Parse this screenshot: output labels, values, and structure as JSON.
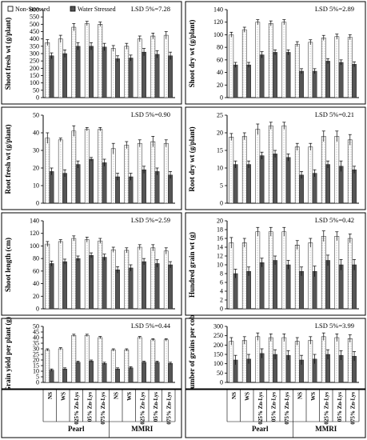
{
  "legend": {
    "non_stressed": "Non-Stressed",
    "water_stressed": "Water Stressed"
  },
  "colors": {
    "non_stressed_fill": "#ffffff",
    "water_stressed_fill": "#555555",
    "axis": "#000000",
    "grid": "#bbbbbb"
  },
  "categories": [
    "NS",
    "WS",
    "025% Zn-Lys",
    "05% Zn-Lys",
    "075% Zn-Lys",
    "NS",
    "WS",
    "025% Zn-Lys",
    "05% Zn-Lys",
    "075% Zn-Lys"
  ],
  "groups": [
    {
      "label": "Pearl"
    },
    {
      "label": "MMRI"
    }
  ],
  "chart_data": [
    {
      "type": "bar",
      "ylabel": "Shoot fresh wt (g/plant)",
      "lsd": "LSD 5%=7.28",
      "ylim": [
        0,
        600
      ],
      "yticks": [
        0,
        50,
        100,
        150,
        200,
        250,
        300,
        350,
        400,
        450,
        500,
        550,
        600
      ],
      "series": [
        {
          "name": "Non-Stressed",
          "values": [
            375,
            400,
            480,
            505,
            500,
            335,
            350,
            400,
            420,
            425
          ],
          "errors": [
            20,
            25,
            25,
            15,
            15,
            20,
            20,
            20,
            20,
            25
          ]
        },
        {
          "name": "Water Stressed",
          "values": [
            285,
            300,
            350,
            350,
            345,
            265,
            270,
            310,
            295,
            285
          ],
          "errors": [
            20,
            25,
            25,
            25,
            25,
            20,
            20,
            25,
            25,
            25
          ]
        }
      ]
    },
    {
      "type": "bar",
      "ylabel": "Shoot dry wt (g/plant)",
      "lsd": "LSD 5%=2.89",
      "ylim": [
        0,
        140
      ],
      "yticks": [
        0,
        20,
        40,
        60,
        80,
        100,
        120,
        140
      ],
      "series": [
        {
          "name": "Non-Stressed",
          "values": [
            100,
            108,
            120,
            118,
            120,
            85,
            88,
            95,
            97,
            96
          ],
          "errors": [
            4,
            4,
            4,
            4,
            4,
            4,
            4,
            4,
            4,
            4
          ]
        },
        {
          "name": "Water Stressed",
          "values": [
            52,
            52,
            68,
            72,
            72,
            42,
            42,
            58,
            56,
            53
          ],
          "errors": [
            4,
            4,
            5,
            4,
            4,
            4,
            4,
            4,
            4,
            4
          ]
        }
      ]
    },
    {
      "type": "bar",
      "ylabel": "Root fresh wt (g/plant)",
      "lsd": "LSD 5%=0.90",
      "ylim": [
        0,
        50
      ],
      "yticks": [
        0,
        10,
        20,
        30,
        40,
        50
      ],
      "series": [
        {
          "name": "Non-Stressed",
          "values": [
            37,
            36,
            41,
            42,
            42,
            31,
            33,
            34,
            35,
            34
          ],
          "errors": [
            3,
            1,
            3,
            1,
            1,
            3,
            2,
            2,
            3,
            2
          ]
        },
        {
          "name": "Water Stressed",
          "values": [
            18,
            17,
            22,
            25,
            23,
            15,
            15,
            19,
            18,
            16
          ],
          "errors": [
            2,
            2,
            2,
            1,
            2,
            2,
            2,
            2,
            2,
            2
          ]
        }
      ]
    },
    {
      "type": "bar",
      "ylabel": "Root dry wt (g/plant)",
      "lsd": "LSD 5%=0.21",
      "ylim": [
        0,
        25
      ],
      "yticks": [
        0,
        5,
        10,
        15,
        20,
        25
      ],
      "series": [
        {
          "name": "Non-Stressed",
          "values": [
            18.8,
            19,
            21,
            22,
            22,
            16,
            16,
            19,
            19,
            18
          ],
          "errors": [
            1,
            1,
            1.5,
            1,
            1,
            1,
            1,
            1.5,
            1.5,
            1.5
          ]
        },
        {
          "name": "Water Stressed",
          "values": [
            11,
            11,
            13.5,
            14,
            13,
            8,
            8.5,
            11,
            10.5,
            9.5
          ],
          "errors": [
            1,
            1,
            1,
            1,
            1,
            1,
            1,
            1,
            1.5,
            1
          ]
        }
      ]
    },
    {
      "type": "bar",
      "ylabel": "Shoot length (cm)",
      "lsd": "LSD 5%=2.59",
      "ylim": [
        0,
        140
      ],
      "yticks": [
        0,
        20,
        40,
        60,
        80,
        100,
        120,
        140
      ],
      "series": [
        {
          "name": "Non-Stressed",
          "values": [
            103,
            107,
            112,
            110,
            108,
            94,
            93,
            98,
            97,
            92
          ],
          "errors": [
            4,
            3,
            4,
            4,
            4,
            4,
            4,
            4,
            5,
            5
          ]
        },
        {
          "name": "Water Stressed",
          "values": [
            72,
            75,
            80,
            85,
            82,
            62,
            65,
            75,
            72,
            70
          ],
          "errors": [
            4,
            4,
            4,
            4,
            5,
            5,
            5,
            5,
            6,
            5
          ]
        }
      ]
    },
    {
      "type": "bar",
      "ylabel": "Hundred grain wt (g)",
      "lsd": "LSD 5%=0.42",
      "ylim": [
        0,
        20
      ],
      "yticks": [
        0,
        2,
        4,
        6,
        8,
        10,
        12,
        14,
        16,
        18,
        20
      ],
      "series": [
        {
          "name": "Non-Stressed",
          "values": [
            15,
            15,
            17.5,
            17.5,
            17.5,
            14.5,
            15,
            16.5,
            16.5,
            16
          ],
          "errors": [
            1.2,
            1,
            1,
            1,
            1,
            1,
            1,
            1.2,
            1,
            1
          ]
        },
        {
          "name": "Water Stressed",
          "values": [
            8,
            8.5,
            10.5,
            11,
            10,
            8.5,
            8.5,
            11,
            10,
            10
          ],
          "errors": [
            1,
            1,
            1,
            1,
            1,
            1,
            1.2,
            1.2,
            1.2,
            1.2
          ]
        }
      ]
    },
    {
      "type": "bar",
      "ylabel": "Grain yield per plant (g)",
      "lsd": "LSD 5%=0.44",
      "ylim": [
        0,
        50
      ],
      "yticks": [
        0,
        5,
        10,
        15,
        20,
        25,
        30,
        35,
        40,
        45,
        50
      ],
      "series": [
        {
          "name": "Non-Stressed",
          "values": [
            29,
            30,
            42,
            42,
            40,
            29,
            29,
            40,
            38,
            38
          ],
          "errors": [
            1,
            1,
            1,
            1,
            1,
            1,
            1,
            1,
            1,
            1
          ]
        },
        {
          "name": "Water Stressed",
          "values": [
            11,
            12,
            18,
            19,
            17,
            12,
            13,
            18,
            18,
            17
          ],
          "errors": [
            1,
            1,
            1,
            1,
            1,
            1,
            1,
            1,
            1,
            1
          ]
        }
      ]
    },
    {
      "type": "bar",
      "ylabel": "Number of grains per cob",
      "lsd": "LSD 5%=3.99",
      "ylim": [
        0,
        300
      ],
      "yticks": [
        0,
        50,
        100,
        150,
        200,
        250,
        300
      ],
      "series": [
        {
          "name": "Non-Stressed",
          "values": [
            220,
            225,
            245,
            240,
            240,
            220,
            225,
            245,
            240,
            235
          ],
          "errors": [
            20,
            20,
            20,
            20,
            20,
            20,
            20,
            20,
            20,
            20
          ]
        },
        {
          "name": "Water Stressed",
          "values": [
            120,
            125,
            155,
            150,
            145,
            120,
            125,
            150,
            145,
            140
          ],
          "errors": [
            25,
            25,
            25,
            25,
            25,
            25,
            25,
            25,
            25,
            25
          ]
        }
      ]
    }
  ]
}
